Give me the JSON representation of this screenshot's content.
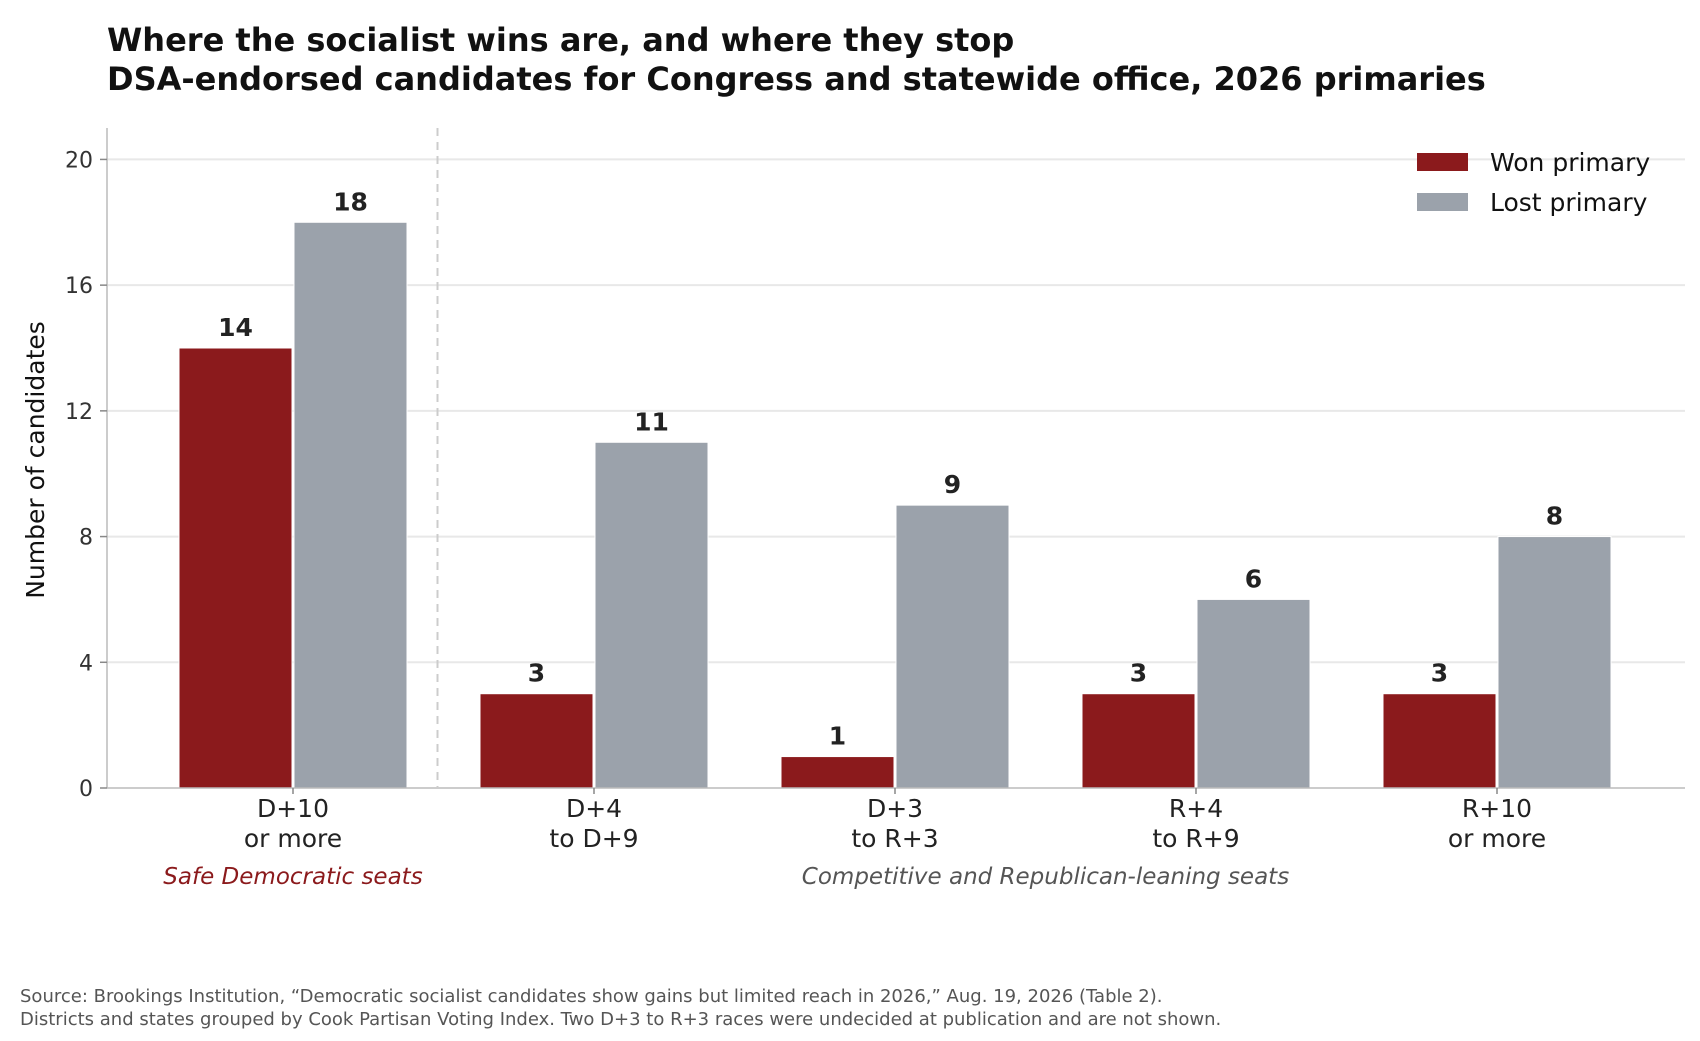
{
  "chart_data": {
    "type": "bar",
    "title": "Where the socialist wins are, and where they stop",
    "subtitle": "DSA-endorsed candidates for Congress and statewide office, 2026 primaries",
    "ylabel": "Number of candidates",
    "xlabel": "",
    "ylim": [
      0,
      21
    ],
    "yticks": [
      0,
      4,
      8,
      12,
      16,
      20
    ],
    "grid": "horizontal",
    "legend_position": "top-right",
    "categories": [
      [
        "D+10",
        "or more"
      ],
      [
        "D+4",
        "to D+9"
      ],
      [
        "D+3",
        "to R+3"
      ],
      [
        "R+4",
        "to R+9"
      ],
      [
        "R+10",
        "or more"
      ]
    ],
    "series": [
      {
        "name": "Won primary",
        "color": "#8B1A1C",
        "values": [
          14,
          3,
          1,
          3,
          3
        ]
      },
      {
        "name": "Lost primary",
        "color": "#9BA2AB",
        "values": [
          18,
          11,
          9,
          6,
          8
        ]
      }
    ],
    "groups": [
      {
        "label": "Safe Democratic seats",
        "color": "#8B1A1C",
        "categories": [
          0
        ]
      },
      {
        "label": "Competitive and Republican-leaning seats",
        "color": "#555555",
        "categories": [
          1,
          2,
          3,
          4
        ]
      }
    ],
    "divider_after_category": 0
  },
  "source_lines": [
    "Source: Brookings Institution, “Democratic socialist candidates show gains but limited reach in 2026,” Aug. 19, 2026 (Table 2).",
    "Districts and states grouped by Cook Partisan Voting Index. Two D+3 to R+3 races were undecided at publication and are not shown."
  ]
}
